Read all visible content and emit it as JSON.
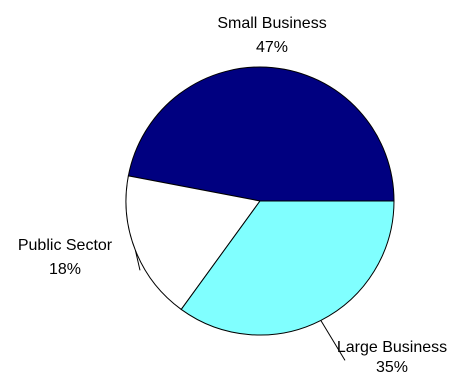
{
  "chart_data": {
    "type": "pie",
    "title": "",
    "start_angle_deg": 0,
    "direction": "counterclockwise",
    "slices": [
      {
        "label": "Small Business",
        "value": 47,
        "value_label": "47%",
        "color": "#000080"
      },
      {
        "label": "Public Sector",
        "value": 18,
        "value_label": "18%",
        "color": "#ffffff"
      },
      {
        "label": "Large Business",
        "value": 35,
        "value_label": "35%",
        "color": "#80ffff"
      }
    ],
    "outline_color": "#000000",
    "legend": "none"
  }
}
